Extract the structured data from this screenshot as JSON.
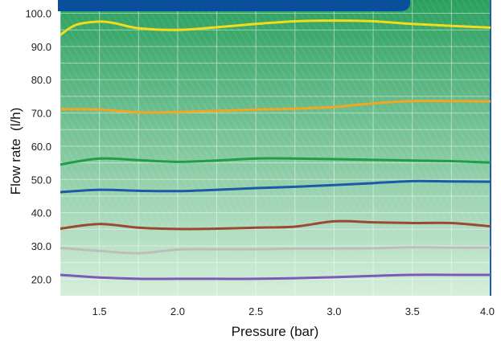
{
  "chart_data": {
    "type": "line",
    "xlabel": "Pressure (bar)",
    "ylabel": "Flow rate  (l/h)",
    "xlim": [
      1.25,
      4.0
    ],
    "ylim": [
      15.0,
      104.0
    ],
    "x_ticks": [
      1.5,
      2.0,
      2.5,
      3.0,
      3.5,
      4.0
    ],
    "x_tick_labels": [
      "1.5",
      "2.0",
      "2.5",
      "3.0",
      "3.5",
      "4.0"
    ],
    "y_ticks": [
      20.0,
      30.0,
      40.0,
      50.0,
      60.0,
      70.0,
      80.0,
      90.0,
      100.0
    ],
    "y_tick_labels": [
      "20.0",
      "30.0",
      "40.0",
      "50.0",
      "60.0",
      "70.0",
      "80.0",
      "90.0",
      "100.0"
    ],
    "grid": true,
    "legend": "none",
    "colors": {
      "background_top": "#2aa05e",
      "background_bottom": "#d6eedb",
      "header_tab": "#0a4f9c",
      "right_axis": "#1e5fa8"
    },
    "series": [
      {
        "color": "#f2dc1c",
        "x": [
          1.25,
          1.35,
          1.5,
          1.6,
          1.75,
          2.0,
          2.25,
          2.5,
          2.75,
          3.0,
          3.25,
          3.5,
          3.75,
          4.0
        ],
        "y": [
          93.5,
          96.5,
          97.5,
          97.0,
          95.5,
          95.0,
          95.8,
          96.8,
          97.6,
          97.8,
          97.6,
          96.8,
          96.2,
          95.7
        ]
      },
      {
        "color": "#f2a622",
        "x": [
          1.25,
          1.5,
          1.75,
          2.0,
          2.25,
          2.5,
          2.75,
          3.0,
          3.25,
          3.5,
          3.75,
          4.0
        ],
        "y": [
          71.2,
          71.0,
          70.2,
          70.3,
          70.6,
          71.0,
          71.3,
          71.8,
          72.9,
          73.6,
          73.6,
          73.5
        ]
      },
      {
        "color": "#1e9e4a",
        "x": [
          1.25,
          1.5,
          1.75,
          2.0,
          2.25,
          2.5,
          2.75,
          3.0,
          3.25,
          3.5,
          3.75,
          4.0
        ],
        "y": [
          54.5,
          56.3,
          55.8,
          55.3,
          55.7,
          56.3,
          56.3,
          56.1,
          55.9,
          55.7,
          55.5,
          55.1
        ]
      },
      {
        "color": "#1a5aa8",
        "x": [
          1.25,
          1.5,
          1.75,
          2.0,
          2.25,
          2.5,
          2.75,
          3.0,
          3.25,
          3.5,
          3.75,
          4.0
        ],
        "y": [
          46.2,
          46.9,
          46.6,
          46.5,
          46.9,
          47.4,
          47.8,
          48.3,
          48.9,
          49.5,
          49.4,
          49.3
        ]
      },
      {
        "color": "#9a4a33",
        "x": [
          1.25,
          1.5,
          1.75,
          2.0,
          2.25,
          2.5,
          2.75,
          3.0,
          3.25,
          3.5,
          3.75,
          4.0
        ],
        "y": [
          35.2,
          36.6,
          35.5,
          35.1,
          35.2,
          35.5,
          35.8,
          37.4,
          37.1,
          36.9,
          36.9,
          35.9
        ]
      },
      {
        "color": "#bdbdbd",
        "x": [
          1.25,
          1.5,
          1.75,
          2.0,
          2.25,
          2.5,
          2.75,
          3.0,
          3.25,
          3.5,
          3.75,
          4.0
        ],
        "y": [
          29.4,
          28.5,
          27.8,
          28.9,
          29.0,
          29.0,
          29.2,
          29.2,
          29.3,
          29.6,
          29.5,
          29.5
        ]
      },
      {
        "color": "#7a5bb5",
        "x": [
          1.25,
          1.5,
          1.75,
          2.0,
          2.25,
          2.5,
          2.75,
          3.0,
          3.25,
          3.5,
          3.75,
          4.0
        ],
        "y": [
          21.3,
          20.5,
          20.1,
          20.1,
          20.1,
          20.1,
          20.3,
          20.6,
          21.0,
          21.3,
          21.3,
          21.3
        ]
      }
    ]
  }
}
